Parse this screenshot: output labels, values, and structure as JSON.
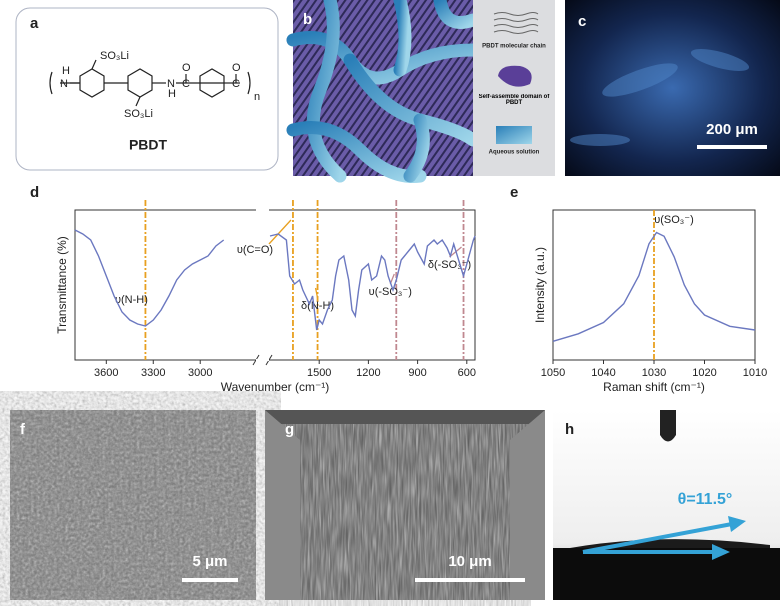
{
  "labels": [
    "a",
    "b",
    "c",
    "d",
    "e",
    "f",
    "g",
    "h"
  ],
  "structure": {
    "name": "PBDT",
    "group_top": "SO₃Li",
    "group_bottom": "SO₃Li",
    "nh_left": "H",
    "n_left": "N",
    "nh_right": "H",
    "n_right": "N",
    "o_left": "O",
    "c_left": "C",
    "o_right": "O",
    "c_right": "C",
    "repeat": "n"
  },
  "legend_b": [
    "PBDT molecular chain",
    "Self-assemble domain of PBDT",
    "Aqueous solution"
  ],
  "scale_bars": {
    "c": "200 μm",
    "f": "5 μm",
    "g": "10 μm"
  },
  "angle": "θ=11.5°",
  "chart_data": [
    {
      "type": "line",
      "xlabel": "Wavenumber (cm⁻¹)",
      "ylabel": "Transmittance (%)",
      "x": [
        3800,
        3750,
        3700,
        3650,
        3600,
        3550,
        3500,
        3450,
        3400,
        3350,
        3300,
        3250,
        3200,
        3150,
        3100,
        3050,
        3000,
        2950,
        2900,
        2850,
        2200,
        1800,
        1750,
        1700,
        1680,
        1650,
        1620,
        1600,
        1560,
        1540,
        1515,
        1500,
        1480,
        1450,
        1420,
        1400,
        1380,
        1350,
        1320,
        1300,
        1280,
        1260,
        1240,
        1200,
        1180,
        1150,
        1120,
        1100,
        1080,
        1050,
        1030,
        1000,
        980,
        950,
        920,
        900,
        860,
        840,
        800,
        780,
        750,
        720,
        700,
        680,
        650,
        620,
        600,
        580,
        560,
        550
      ],
      "series": [
        {
          "color": "#6b78c0",
          "values": [
            85,
            83,
            80,
            72,
            62,
            52,
            44,
            40,
            38,
            37,
            40,
            45,
            52,
            60,
            65,
            68,
            70,
            72,
            77,
            80,
            null,
            82,
            83,
            80,
            62,
            58,
            60,
            55,
            48,
            52,
            35,
            40,
            38,
            45,
            50,
            62,
            70,
            72,
            60,
            45,
            42,
            55,
            65,
            68,
            60,
            62,
            72,
            70,
            62,
            55,
            60,
            70,
            72,
            75,
            78,
            74,
            68,
            77,
            80,
            78,
            80,
            76,
            72,
            78,
            70,
            62,
            68,
            74,
            80,
            82
          ]
        }
      ],
      "xlim": [
        3800,
        550
      ],
      "x_break": [
        2650,
        1800
      ],
      "ylim": [
        20,
        95
      ],
      "xticks": [
        3600,
        3300,
        3000,
        1500,
        1200,
        900,
        600
      ],
      "yticks": [],
      "peaks": [
        {
          "label": "υ(N-H)",
          "x": 3350,
          "color": "#e8a020"
        },
        {
          "label": "υ(C=O)",
          "x": 1660,
          "color": "#e8a020"
        },
        {
          "label": "δ(N-H)",
          "x": 1510,
          "color": "#e8a020"
        },
        {
          "label": "υ(-SO₃⁻)",
          "x": 1030,
          "color": "#c08890"
        },
        {
          "label": "δ(-SO₃⁻)",
          "x": 620,
          "color": "#c08890"
        }
      ]
    },
    {
      "type": "line",
      "xlabel": "Raman shift (cm⁻¹)",
      "ylabel": "Intensity (a.u.)",
      "x": [
        1050,
        1045,
        1040,
        1036,
        1033,
        1031,
        1029.5,
        1028,
        1026,
        1024,
        1022,
        1020,
        1015,
        1010
      ],
      "series": [
        {
          "color": "#6b78c0",
          "values": [
            10,
            14,
            20,
            30,
            45,
            62,
            68,
            66,
            55,
            40,
            30,
            24,
            18,
            16
          ]
        }
      ],
      "xlim": [
        1050,
        1010
      ],
      "ylim": [
        0,
        80
      ],
      "xticks": [
        1050,
        1040,
        1030,
        1020,
        1010
      ],
      "yticks": [],
      "peaks": [
        {
          "label": "υ(SO₃⁻)",
          "x": 1030,
          "color": "#e8a020"
        }
      ]
    }
  ]
}
